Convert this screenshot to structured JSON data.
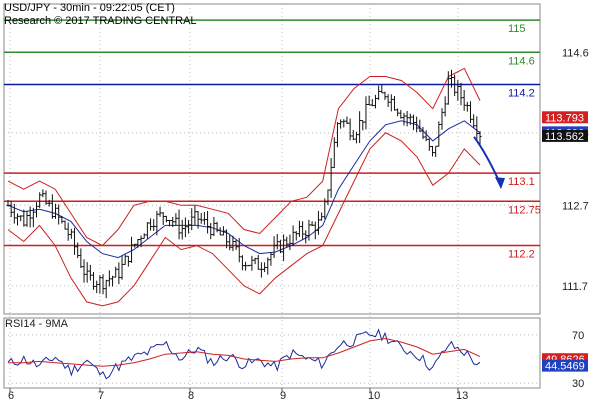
{
  "header": {
    "line1": "USD/JPY - 30min - 09:22:05 (CET)",
    "line2": "Research © 2017 TRADING CENTRAL"
  },
  "chart_data": [
    {
      "type": "candlestick",
      "symbol": "USD/JPY",
      "interval": "30min",
      "ylim": [
        111.35,
        115.2
      ],
      "x_ticks": [
        "6",
        "7",
        "8",
        "9",
        "10",
        "13"
      ],
      "y_ticks": [
        111.7,
        112.7,
        113.6,
        114.6
      ],
      "levels": [
        {
          "value": 115,
          "label": "115",
          "color": "#2e8b2e"
        },
        {
          "value": 114.6,
          "label": "114.6",
          "color": "#2e8b2e"
        },
        {
          "value": 114.2,
          "label": "114.2",
          "color": "#0a1aa0"
        },
        {
          "value": 113.1,
          "label": "113.1",
          "color": "#cc1f1f"
        },
        {
          "value": 112.75,
          "label": "112.75",
          "color": "#cc1f1f"
        },
        {
          "value": 112.2,
          "label": "112.2",
          "color": "#cc1f1f"
        }
      ],
      "badges": [
        {
          "value": 113.793,
          "label": "113.793",
          "color": "#d62020"
        },
        {
          "value": 113.606,
          "label": "113.606",
          "color": "#2040c0"
        },
        {
          "value": 113.562,
          "label": "113.562",
          "color": "#111111"
        }
      ],
      "price_path": [
        112.7,
        112.5,
        112.8,
        112.6,
        112.3,
        111.8,
        111.75,
        111.85,
        112.2,
        112.5,
        112.6,
        112.4,
        112.55,
        112.4,
        112.25,
        112.0,
        111.95,
        112.15,
        112.3,
        112.4,
        112.5,
        113.8,
        113.6,
        113.95,
        114.1,
        113.85,
        113.7,
        113.3,
        114.25,
        114.0,
        113.6
      ],
      "bollinger_upper": [
        113.0,
        112.9,
        113.0,
        112.9,
        112.6,
        112.3,
        112.2,
        112.4,
        112.7,
        112.75,
        112.75,
        112.7,
        112.7,
        112.65,
        112.6,
        112.4,
        112.35,
        112.55,
        112.75,
        112.8,
        113.0,
        113.9,
        114.15,
        114.3,
        114.3,
        114.25,
        114.1,
        113.9,
        114.3,
        114.4,
        114.0
      ],
      "bollinger_lower": [
        112.4,
        112.25,
        112.45,
        112.2,
        111.8,
        111.5,
        111.45,
        111.5,
        111.7,
        112.0,
        112.3,
        112.15,
        112.2,
        112.1,
        111.9,
        111.7,
        111.6,
        111.8,
        111.95,
        112.1,
        112.2,
        112.6,
        113.0,
        113.4,
        113.6,
        113.5,
        113.3,
        112.95,
        113.1,
        113.4,
        113.2
      ],
      "moving_average": [
        112.7,
        112.62,
        112.65,
        112.6,
        112.5,
        112.25,
        112.1,
        112.05,
        112.15,
        112.3,
        112.45,
        112.45,
        112.45,
        112.42,
        112.35,
        112.2,
        112.1,
        112.12,
        112.2,
        112.3,
        112.45,
        112.9,
        113.2,
        113.5,
        113.7,
        113.75,
        113.7,
        113.5,
        113.65,
        113.75,
        113.6
      ],
      "projection_end": 112.95
    },
    {
      "type": "line",
      "title": "RSI14 - 9MA",
      "ylim": [
        26,
        84
      ],
      "y_ticks": [
        30,
        70
      ],
      "series": [
        {
          "values": [
            46,
            50,
            44,
            52,
            40,
            49,
            36,
            44,
            51,
            56,
            63,
            50,
            59,
            47,
            53,
            45,
            49,
            43,
            55,
            50,
            46,
            62,
            65,
            71,
            69,
            59,
            54,
            42,
            62,
            56,
            44
          ],
          "color": "#1a2a9a"
        },
        {
          "values": [
            47,
            47,
            48,
            47,
            46,
            45,
            44,
            45,
            47,
            50,
            54,
            55,
            56,
            54,
            53,
            50,
            49,
            48,
            50,
            51,
            51,
            55,
            60,
            65,
            67,
            64,
            60,
            54,
            56,
            58,
            52
          ],
          "color": "#cc2222"
        }
      ],
      "badges": [
        {
          "value": 49.8626,
          "label": "49.8626",
          "color": "#d62020"
        },
        {
          "value": 44.5469,
          "label": "44.5469",
          "color": "#2040c0"
        }
      ]
    }
  ]
}
